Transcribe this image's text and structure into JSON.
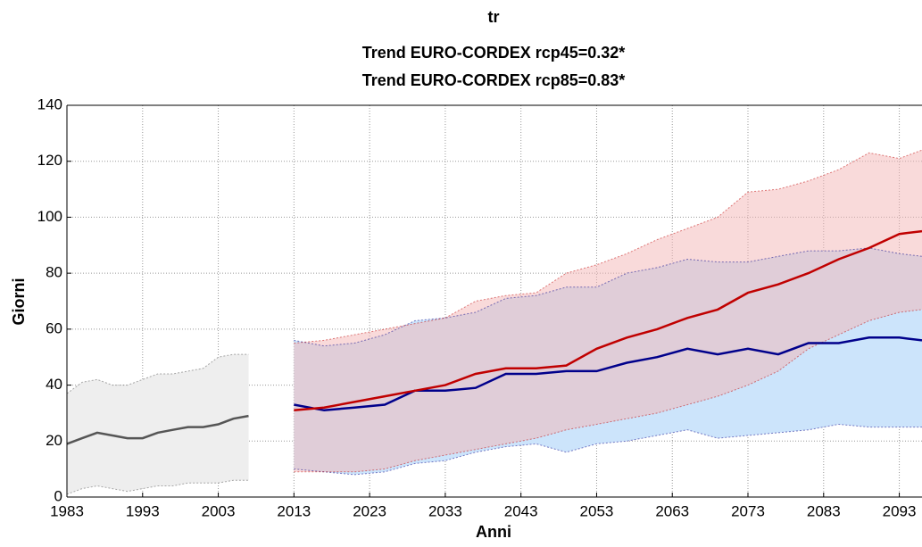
{
  "chart_data": {
    "type": "line",
    "title": [
      "tr",
      "Trend EURO-CORDEX rcp45=0.32*",
      "Trend EURO-CORDEX rcp85=0.83*"
    ],
    "xlabel": "Anni",
    "ylabel": "Giorni",
    "xlim": [
      1983,
      2096
    ],
    "ylim": [
      0,
      140
    ],
    "xticks": [
      1983,
      1993,
      2003,
      2013,
      2023,
      2033,
      2043,
      2053,
      2063,
      2073,
      2083,
      2093
    ],
    "yticks": [
      0,
      20,
      40,
      60,
      80,
      100,
      120,
      140
    ],
    "grid": true,
    "series": [
      {
        "color": "#555555",
        "band_color": "#eeeeee",
        "x": [
          1983,
          1985,
          1987,
          1989,
          1991,
          1993,
          1995,
          1997,
          1999,
          2001,
          2003,
          2005,
          2007
        ],
        "values": [
          19,
          21,
          23,
          22,
          21,
          21,
          23,
          24,
          25,
          25,
          26,
          28,
          29
        ],
        "lower": [
          1,
          3,
          4,
          3,
          2,
          3,
          4,
          4,
          5,
          5,
          5,
          6,
          6
        ],
        "upper": [
          37,
          41,
          42,
          40,
          40,
          42,
          44,
          44,
          45,
          46,
          50,
          51,
          51
        ]
      },
      {
        "color": "#00008b",
        "band_color": "#cce4fb",
        "x": [
          2013,
          2017,
          2021,
          2025,
          2029,
          2033,
          2037,
          2041,
          2045,
          2049,
          2053,
          2057,
          2061,
          2065,
          2069,
          2073,
          2077,
          2081,
          2085,
          2089,
          2093,
          2096
        ],
        "values": [
          33,
          31,
          32,
          33,
          38,
          38,
          39,
          44,
          44,
          45,
          45,
          48,
          50,
          53,
          51,
          53,
          51,
          55,
          55,
          57,
          57,
          56
        ],
        "lower": [
          10,
          9,
          8,
          9,
          12,
          13,
          16,
          18,
          19,
          16,
          19,
          20,
          22,
          24,
          21,
          22,
          23,
          24,
          26,
          25,
          25,
          25
        ],
        "upper": [
          56,
          54,
          55,
          58,
          63,
          64,
          66,
          71,
          72,
          75,
          75,
          80,
          82,
          85,
          84,
          84,
          86,
          88,
          88,
          89,
          87,
          86
        ]
      },
      {
        "color": "#c00000",
        "band_color": "#f4b6b6",
        "x": [
          2013,
          2017,
          2021,
          2025,
          2029,
          2033,
          2037,
          2041,
          2045,
          2049,
          2053,
          2057,
          2061,
          2065,
          2069,
          2073,
          2077,
          2081,
          2085,
          2089,
          2093,
          2096
        ],
        "values": [
          31,
          32,
          34,
          36,
          38,
          40,
          44,
          46,
          46,
          47,
          53,
          57,
          60,
          64,
          67,
          73,
          76,
          80,
          85,
          89,
          94,
          95
        ],
        "lower": [
          9,
          9,
          9,
          10,
          13,
          15,
          17,
          19,
          21,
          24,
          26,
          28,
          30,
          33,
          36,
          40,
          45,
          53,
          58,
          63,
          66,
          67
        ],
        "upper": [
          55,
          56,
          58,
          60,
          62,
          64,
          70,
          72,
          73,
          80,
          83,
          87,
          92,
          96,
          100,
          109,
          110,
          113,
          117,
          123,
          121,
          124
        ]
      }
    ]
  }
}
